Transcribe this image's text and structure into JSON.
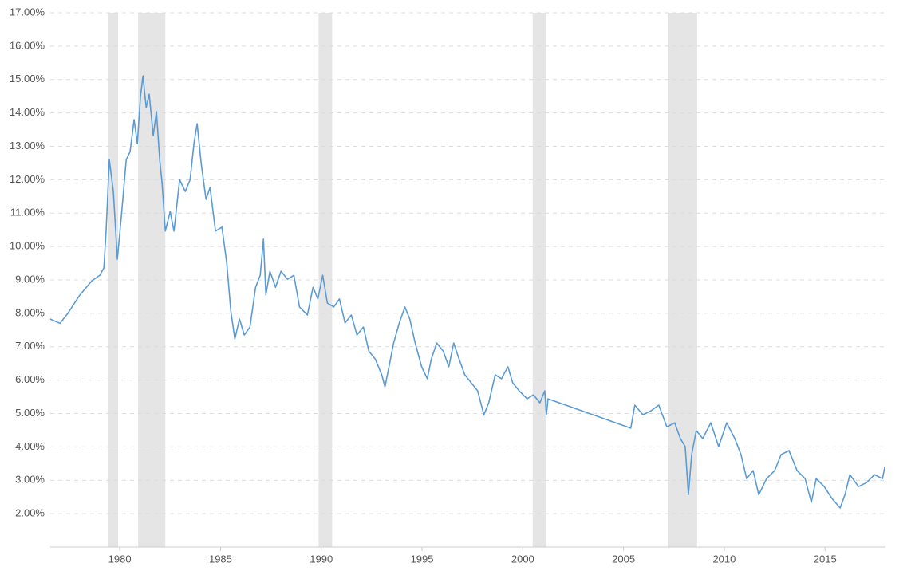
{
  "chart_data": {
    "type": "line",
    "color": "#5b9bd5",
    "shade_color": "#e5e5e5",
    "grid": true,
    "xlim": [
      1976.55,
      2018.0
    ],
    "ylim": [
      1,
      17
    ],
    "xticks": [
      1980,
      1985,
      1990,
      1995,
      2000,
      2005,
      2010,
      2015
    ],
    "yticks": [
      {
        "value": 2,
        "label": "2.00%"
      },
      {
        "value": 3,
        "label": "3.00%"
      },
      {
        "value": 4,
        "label": "4.00%"
      },
      {
        "value": 5,
        "label": "5.00%"
      },
      {
        "value": 6,
        "label": "6.00%"
      },
      {
        "value": 7,
        "label": "7.00%"
      },
      {
        "value": 8,
        "label": "8.00%"
      },
      {
        "value": 9,
        "label": "9.00%"
      },
      {
        "value": 10,
        "label": "10.00%"
      },
      {
        "value": 11,
        "label": "11.00%"
      },
      {
        "value": 12,
        "label": "12.00%"
      },
      {
        "value": 13,
        "label": "13.00%"
      },
      {
        "value": 14,
        "label": "14.00%"
      },
      {
        "value": 15,
        "label": "15.00%"
      },
      {
        "value": 16,
        "label": "16.00%"
      },
      {
        "value": 17,
        "label": "17.00%"
      }
    ],
    "shaded_ranges": [
      [
        1979.44,
        1979.92
      ],
      [
        1980.91,
        1982.26
      ],
      [
        1989.87,
        1990.54
      ],
      [
        2000.49,
        2001.16
      ],
      [
        2007.19,
        2008.65
      ]
    ],
    "x": [
      1976.55,
      1977.03,
      1977.42,
      1978.02,
      1978.61,
      1979.01,
      1979.21,
      1979.32,
      1979.48,
      1979.68,
      1979.88,
      1980.08,
      1980.32,
      1980.51,
      1980.71,
      1980.87,
      1981.03,
      1981.15,
      1981.31,
      1981.46,
      1981.66,
      1981.82,
      1981.98,
      1982.1,
      1982.26,
      1982.5,
      1982.69,
      1982.97,
      1983.25,
      1983.49,
      1983.68,
      1983.84,
      1984.04,
      1984.28,
      1984.48,
      1984.75,
      1985.07,
      1985.31,
      1985.51,
      1985.71,
      1985.94,
      1986.18,
      1986.46,
      1986.74,
      1986.97,
      1987.13,
      1987.25,
      1987.45,
      1987.73,
      1988.0,
      1988.32,
      1988.64,
      1988.92,
      1989.31,
      1989.59,
      1989.83,
      1990.07,
      1990.3,
      1990.62,
      1990.9,
      1991.18,
      1991.49,
      1991.77,
      1992.09,
      1992.36,
      1992.68,
      1993.0,
      1993.16,
      1993.36,
      1993.59,
      1993.87,
      1994.15,
      1994.39,
      1994.66,
      1994.98,
      1995.26,
      1995.46,
      1995.73,
      1996.05,
      1996.33,
      1996.57,
      1996.84,
      1997.12,
      1997.44,
      1997.76,
      1998.07,
      1998.31,
      1998.63,
      1998.94,
      1999.26,
      1999.5,
      1999.82,
      2000.21,
      2000.53,
      2000.85,
      2001.09,
      2001.17,
      2001.25,
      2005.36,
      2005.56,
      2005.96,
      2006.36,
      2006.75,
      2007.15,
      2007.54,
      2007.82,
      2008.06,
      2008.22,
      2008.38,
      2008.61,
      2008.93,
      2009.33,
      2009.72,
      2010.12,
      2010.52,
      2010.83,
      2011.11,
      2011.43,
      2011.71,
      2012.1,
      2012.5,
      2012.82,
      2013.21,
      2013.61,
      2014.01,
      2014.32,
      2014.56,
      2014.96,
      2015.35,
      2015.75,
      2015.99,
      2016.23,
      2016.66,
      2017.06,
      2017.45,
      2017.85,
      2017.97
    ],
    "values": [
      7.83,
      7.7,
      8.0,
      8.55,
      8.97,
      9.14,
      9.36,
      10.46,
      12.6,
      11.65,
      9.62,
      10.93,
      12.6,
      12.84,
      13.8,
      13.08,
      14.52,
      15.11,
      14.16,
      14.56,
      13.32,
      14.04,
      12.6,
      11.89,
      10.46,
      11.05,
      10.46,
      12.0,
      11.65,
      12.0,
      13.08,
      13.68,
      12.49,
      11.41,
      11.77,
      10.46,
      10.58,
      9.5,
      8.07,
      7.23,
      7.83,
      7.35,
      7.59,
      8.78,
      9.14,
      10.22,
      8.55,
      9.26,
      8.78,
      9.26,
      9.02,
      9.14,
      8.19,
      7.95,
      8.78,
      8.43,
      9.14,
      8.31,
      8.19,
      8.43,
      7.71,
      7.95,
      7.35,
      7.59,
      6.87,
      6.63,
      6.16,
      5.8,
      6.4,
      7.11,
      7.71,
      8.19,
      7.83,
      7.11,
      6.4,
      6.04,
      6.63,
      7.11,
      6.87,
      6.4,
      7.11,
      6.63,
      6.16,
      5.92,
      5.68,
      4.96,
      5.32,
      6.16,
      6.04,
      6.4,
      5.92,
      5.68,
      5.44,
      5.56,
      5.32,
      5.68,
      4.96,
      5.44,
      4.56,
      5.25,
      4.96,
      5.08,
      5.25,
      4.6,
      4.72,
      4.25,
      4.01,
      2.57,
      3.77,
      4.49,
      4.25,
      4.72,
      4.01,
      4.72,
      4.25,
      3.77,
      3.05,
      3.29,
      2.57,
      3.05,
      3.29,
      3.77,
      3.89,
      3.29,
      3.05,
      2.34,
      3.05,
      2.81,
      2.45,
      2.17,
      2.57,
      3.17,
      2.81,
      2.93,
      3.17,
      3.05,
      3.41
    ]
  }
}
